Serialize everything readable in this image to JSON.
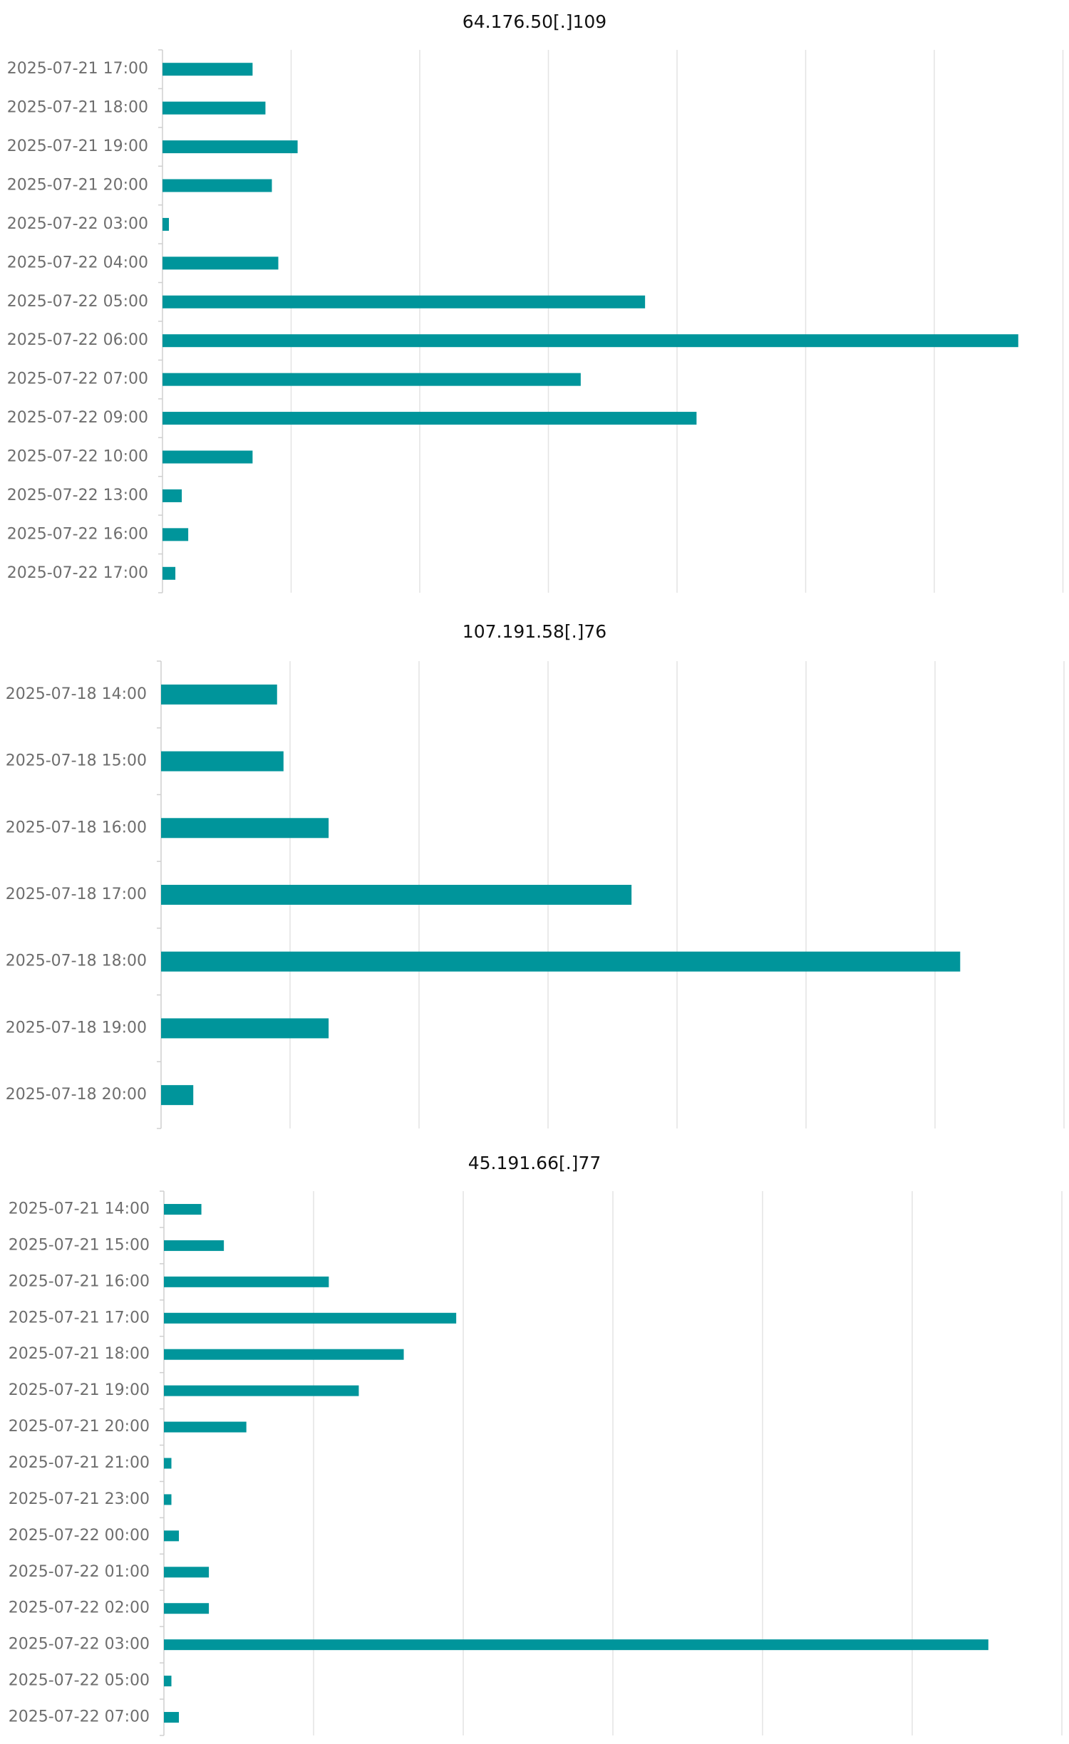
{
  "colors": {
    "bar": "#00959b",
    "grid": "#e3e3e3",
    "axis": "#cfcfcf",
    "label": "#6e6e6e",
    "title": "#111111"
  },
  "chart_data": [
    {
      "type": "bar",
      "orientation": "horizontal",
      "title": "64.176.50[.]109",
      "categories": [
        "2025-07-21 17:00",
        "2025-07-21 18:00",
        "2025-07-21 19:00",
        "2025-07-21 20:00",
        "2025-07-22 03:00",
        "2025-07-22 04:00",
        "2025-07-22 05:00",
        "2025-07-22 06:00",
        "2025-07-22 07:00",
        "2025-07-22 09:00",
        "2025-07-22 10:00",
        "2025-07-22 13:00",
        "2025-07-22 16:00",
        "2025-07-22 17:00"
      ],
      "values": [
        14,
        16,
        21,
        17,
        1,
        18,
        75,
        133,
        65,
        83,
        14,
        3,
        4,
        2
      ],
      "xlim": [
        0,
        140
      ],
      "grid": true,
      "tick_labels_shown": false
    },
    {
      "type": "bar",
      "orientation": "horizontal",
      "title": "107.191.58[.]76",
      "categories": [
        "2025-07-18 14:00",
        "2025-07-18 15:00",
        "2025-07-18 16:00",
        "2025-07-18 17:00",
        "2025-07-18 18:00",
        "2025-07-18 19:00",
        "2025-07-18 20:00"
      ],
      "values": [
        18,
        19,
        26,
        73,
        124,
        26,
        5
      ],
      "xlim": [
        0,
        140
      ],
      "grid": true,
      "tick_labels_shown": false
    },
    {
      "type": "bar",
      "orientation": "horizontal",
      "title": "45.191.66[.]77",
      "categories": [
        "2025-07-21 14:00",
        "2025-07-21 15:00",
        "2025-07-21 16:00",
        "2025-07-21 17:00",
        "2025-07-21 18:00",
        "2025-07-21 19:00",
        "2025-07-21 20:00",
        "2025-07-21 21:00",
        "2025-07-21 23:00",
        "2025-07-22 00:00",
        "2025-07-22 01:00",
        "2025-07-22 02:00",
        "2025-07-22 03:00",
        "2025-07-22 05:00",
        "2025-07-22 07:00"
      ],
      "values": [
        5,
        8,
        22,
        39,
        32,
        26,
        11,
        1,
        1,
        2,
        6,
        6,
        110,
        1,
        2
      ],
      "xlim": [
        0,
        120
      ],
      "grid": true,
      "tick_labels_shown": false
    }
  ]
}
